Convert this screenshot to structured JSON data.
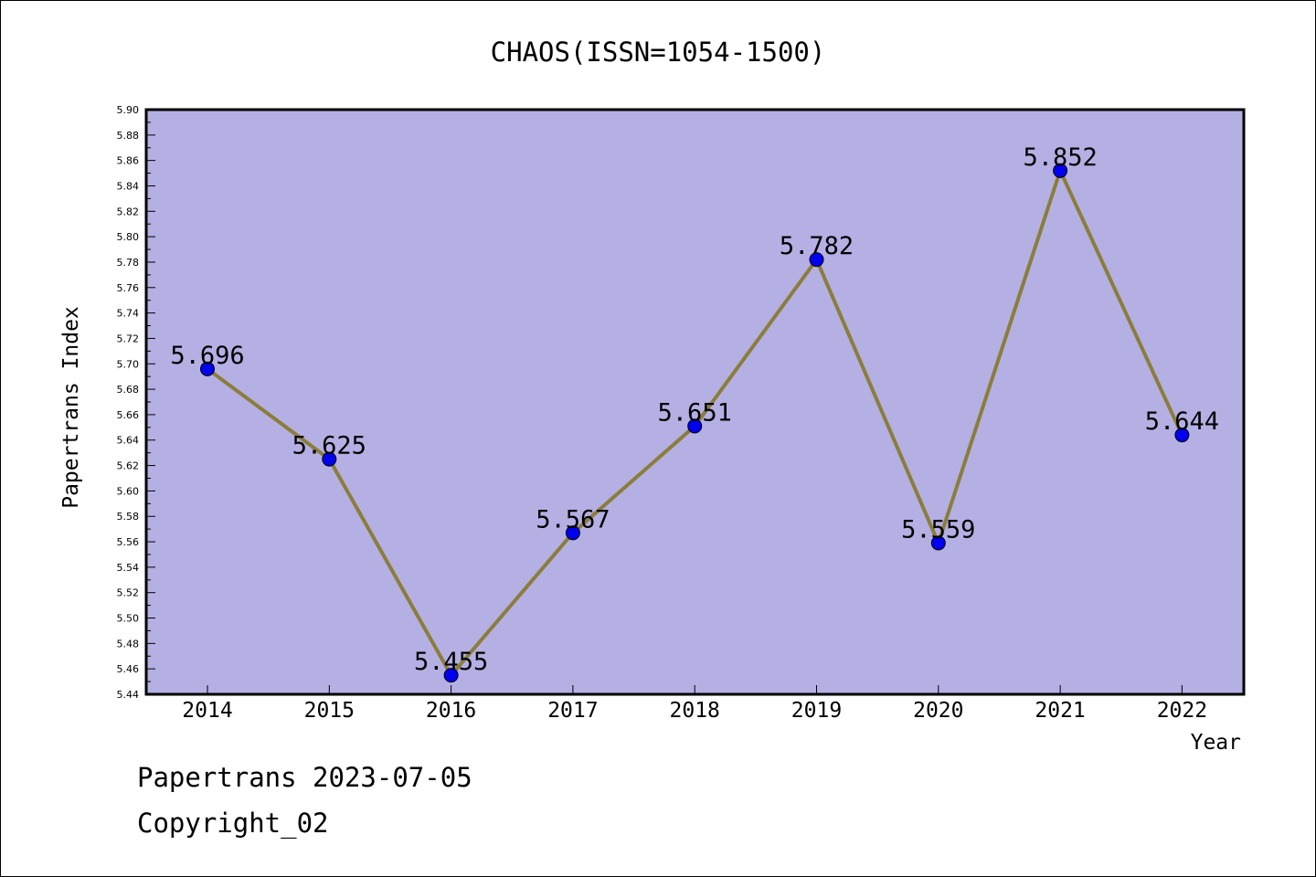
{
  "chart_data": {
    "type": "line",
    "title": "CHAOS(ISSN=1054-1500)",
    "xlabel": "Year",
    "ylabel": "Papertrans Index",
    "categories": [
      "2014",
      "2015",
      "2016",
      "2017",
      "2018",
      "2019",
      "2020",
      "2021",
      "2022"
    ],
    "series": [
      {
        "values": [
          5.696,
          5.625,
          5.455,
          5.567,
          5.651,
          5.782,
          5.559,
          5.852,
          5.644
        ],
        "data_labels": [
          "5.696",
          "5.625",
          "5.455",
          "5.567",
          "5.651",
          "5.782",
          "5.559",
          "5.852",
          "5.644"
        ]
      }
    ],
    "ylim": [
      5.44,
      5.9
    ],
    "yticks": [
      "5.44",
      "5.46",
      "5.48",
      "5.50",
      "5.52",
      "5.54",
      "5.56",
      "5.58",
      "5.60",
      "5.62",
      "5.64",
      "5.66",
      "5.68",
      "5.70",
      "5.72",
      "5.74",
      "5.76",
      "5.78",
      "5.80",
      "5.82",
      "5.84",
      "5.86",
      "5.88",
      "5.90"
    ],
    "grid": false,
    "colors": {
      "plot_background": "#b4b0e4",
      "line": "#8b7d3a",
      "marker": "#0000ee"
    }
  },
  "footer": {
    "line1": "Papertrans 2023-07-05",
    "line2": "Copyright_02"
  }
}
